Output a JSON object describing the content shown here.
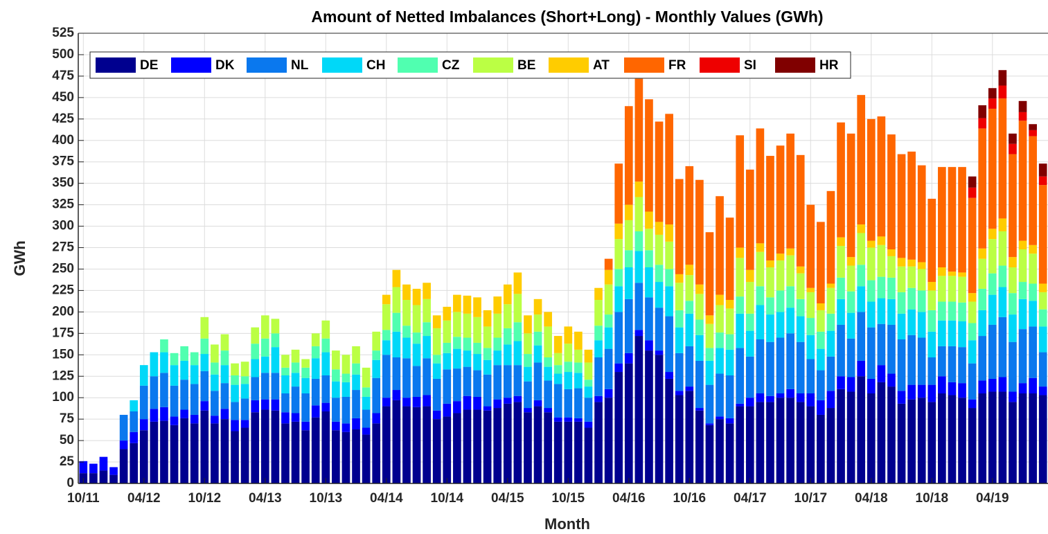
{
  "chart_data": {
    "type": "stacked_bar",
    "title": "Amount of Netted Imbalances (Short+Long) - Monthly Values  (GWh)",
    "x_label": "Month",
    "y_label": "GWh",
    "categories": [
      "10/11",
      null,
      null,
      null,
      null,
      null,
      "04/12",
      null,
      null,
      null,
      null,
      null,
      "10/12",
      null,
      null,
      null,
      null,
      null,
      "04/13",
      null,
      null,
      null,
      null,
      null,
      "10/13",
      null,
      null,
      null,
      null,
      null,
      "04/14",
      null,
      null,
      null,
      null,
      null,
      "10/14",
      null,
      null,
      null,
      null,
      null,
      "04/15",
      null,
      null,
      null,
      null,
      null,
      "10/15",
      null,
      null,
      null,
      null,
      null,
      "04/16",
      null,
      null,
      null,
      null,
      null,
      "10/16",
      null,
      null,
      null,
      null,
      null,
      "04/17",
      null,
      null,
      null,
      null,
      null,
      "10/17",
      null,
      null,
      null,
      null,
      null,
      "04/18",
      null,
      null,
      null,
      null,
      null,
      "10/18",
      null,
      null,
      null,
      null,
      null,
      "04/19",
      null,
      null,
      null,
      null,
      null
    ],
    "ylim": [
      0,
      525
    ],
    "yticks": [
      0,
      25,
      50,
      75,
      100,
      125,
      150,
      175,
      200,
      225,
      250,
      275,
      300,
      325,
      350,
      375,
      400,
      425,
      450,
      475,
      500,
      525
    ],
    "grid": true,
    "legend": "upper left",
    "series": [
      {
        "name": "DE",
        "color": "#00008f",
        "values": [
          12,
          12,
          15,
          10,
          40,
          47,
          62,
          72,
          73,
          68,
          76,
          70,
          85,
          70,
          75,
          61,
          65,
          83,
          86,
          85,
          70,
          72,
          62,
          77,
          84,
          62,
          60,
          63,
          57,
          70,
          90,
          97,
          90,
          89,
          90,
          75,
          78,
          82,
          86,
          86,
          85,
          88,
          93,
          95,
          83,
          90,
          83,
          72,
          72,
          72,
          65,
          95,
          100,
          130,
          140,
          172,
          155,
          150,
          122,
          103,
          108,
          85,
          68,
          75,
          70,
          90,
          90,
          95,
          95,
          100,
          100,
          95,
          90,
          80,
          88,
          110,
          107,
          125,
          105,
          118,
          113,
          93,
          98,
          100,
          95,
          105,
          103,
          100,
          88,
          105,
          107,
          107,
          95,
          105,
          105,
          103
        ]
      },
      {
        "name": "DK",
        "color": "#0000ff",
        "values": [
          14,
          11,
          16,
          9,
          10,
          13,
          13,
          15,
          16,
          10,
          10,
          10,
          11,
          9,
          12,
          13,
          9,
          14,
          12,
          13,
          13,
          10,
          10,
          14,
          10,
          10,
          10,
          13,
          8,
          12,
          10,
          12,
          10,
          12,
          13,
          10,
          15,
          14,
          16,
          15,
          5,
          10,
          7,
          7,
          5,
          7,
          5,
          5,
          5,
          4,
          7,
          7,
          10,
          10,
          12,
          7,
          12,
          5,
          8,
          5,
          5,
          3,
          2,
          3,
          6,
          3,
          10,
          10,
          7,
          5,
          10,
          10,
          15,
          17,
          20,
          15,
          17,
          18,
          17,
          20,
          15,
          15,
          17,
          15,
          20,
          20,
          15,
          17,
          10,
          15,
          15,
          17,
          12,
          12,
          18,
          10
        ]
      },
      {
        "name": "NL",
        "color": "#0a78ee",
        "values": [
          0,
          0,
          0,
          0,
          30,
          24,
          39,
          38,
          40,
          36,
          35,
          36,
          35,
          29,
          30,
          21,
          25,
          27,
          31,
          31,
          22,
          31,
          33,
          31,
          32,
          28,
          31,
          33,
          21,
          41,
          50,
          38,
          46,
          36,
          43,
          37,
          40,
          38,
          34,
          31,
          37,
          40,
          38,
          36,
          31,
          44,
          32,
          39,
          33,
          35,
          28,
          45,
          47,
          60,
          63,
          55,
          50,
          50,
          65,
          44,
          47,
          55,
          45,
          50,
          50,
          65,
          48,
          63,
          63,
          65,
          65,
          60,
          40,
          35,
          40,
          60,
          45,
          57,
          60,
          48,
          57,
          60,
          58,
          55,
          32,
          35,
          42,
          42,
          42,
          52,
          63,
          70,
          58,
          63,
          60,
          40
        ]
      },
      {
        "name": "CH",
        "color": "#00d8f8",
        "values": [
          0,
          0,
          0,
          0,
          0,
          13,
          24,
          28,
          24,
          24,
          22,
          22,
          20,
          19,
          21,
          20,
          17,
          21,
          19,
          30,
          21,
          16,
          18,
          24,
          27,
          19,
          17,
          18,
          15,
          21,
          17,
          30,
          24,
          26,
          26,
          18,
          19,
          23,
          19,
          19,
          17,
          17,
          24,
          28,
          17,
          20,
          16,
          12,
          20,
          18,
          13,
          20,
          25,
          30,
          37,
          37,
          35,
          30,
          35,
          30,
          38,
          30,
          28,
          30,
          30,
          40,
          30,
          40,
          32,
          30,
          30,
          30,
          28,
          25,
          30,
          30,
          30,
          30,
          30,
          30,
          30,
          30,
          30,
          30,
          30,
          30,
          30,
          30,
          27,
          30,
          35,
          35,
          32,
          35,
          30,
          30
        ]
      },
      {
        "name": "CZ",
        "color": "#50ffb0",
        "values": [
          0,
          0,
          0,
          0,
          0,
          0,
          0,
          0,
          15,
          14,
          17,
          15,
          18,
          14,
          17,
          11,
          9,
          18,
          21,
          16,
          9,
          12,
          12,
          14,
          16,
          14,
          10,
          13,
          11,
          11,
          12,
          22,
          14,
          13,
          16,
          10,
          12,
          14,
          15,
          13,
          14,
          15,
          19,
          22,
          15,
          16,
          11,
          10,
          12,
          12,
          8,
          17,
          15,
          20,
          20,
          23,
          20,
          20,
          20,
          20,
          15,
          18,
          15,
          18,
          18,
          20,
          20,
          22,
          20,
          25,
          25,
          20,
          20,
          20,
          20,
          25,
          25,
          25,
          25,
          25,
          25,
          25,
          25,
          25,
          25,
          22,
          22,
          22,
          20,
          25,
          25,
          25,
          25,
          20,
          20,
          20
        ]
      },
      {
        "name": "BE",
        "color": "#bbff44",
        "values": [
          0,
          0,
          0,
          0,
          0,
          0,
          0,
          0,
          0,
          0,
          0,
          0,
          25,
          21,
          19,
          14,
          17,
          19,
          27,
          17,
          15,
          15,
          10,
          15,
          21,
          22,
          22,
          20,
          23,
          22,
          30,
          30,
          30,
          32,
          27,
          31,
          26,
          29,
          28,
          30,
          25,
          28,
          28,
          33,
          24,
          20,
          36,
          14,
          21,
          15,
          20,
          30,
          35,
          35,
          35,
          40,
          25,
          35,
          32,
          32,
          30,
          30,
          28,
          32,
          30,
          45,
          37,
          40,
          35,
          35,
          36,
          30,
          30,
          25,
          30,
          37,
          30,
          37,
          38,
          37,
          25,
          30,
          25,
          25,
          23,
          30,
          30,
          30,
          25,
          35,
          40,
          40,
          30,
          38,
          35,
          20
        ]
      },
      {
        "name": "AT",
        "color": "#ffcc00",
        "values": [
          0,
          0,
          0,
          0,
          0,
          0,
          0,
          0,
          0,
          0,
          0,
          0,
          0,
          0,
          0,
          0,
          0,
          0,
          0,
          0,
          0,
          0,
          0,
          0,
          0,
          0,
          0,
          0,
          0,
          0,
          11,
          20,
          18,
          19,
          19,
          15,
          16,
          20,
          21,
          23,
          19,
          20,
          23,
          25,
          21,
          18,
          17,
          20,
          20,
          21,
          15,
          14,
          17,
          18,
          18,
          18,
          20,
          15,
          20,
          10,
          12,
          11,
          10,
          12,
          10,
          12,
          14,
          10,
          8,
          8,
          8,
          8,
          5,
          8,
          5,
          10,
          10,
          10,
          8,
          10,
          8,
          10,
          8,
          8,
          10,
          10,
          5,
          5,
          10,
          12,
          12,
          15,
          12,
          10,
          10,
          10
        ]
      },
      {
        "name": "FR",
        "color": "#ff6600",
        "values": [
          0,
          0,
          0,
          0,
          0,
          0,
          0,
          0,
          0,
          0,
          0,
          0,
          0,
          0,
          0,
          0,
          0,
          0,
          0,
          0,
          0,
          0,
          0,
          0,
          0,
          0,
          0,
          0,
          0,
          0,
          0,
          0,
          0,
          0,
          0,
          0,
          0,
          0,
          0,
          0,
          0,
          0,
          0,
          0,
          0,
          0,
          0,
          0,
          0,
          0,
          0,
          0,
          13,
          70,
          115,
          120,
          131,
          117,
          129,
          111,
          115,
          122,
          97,
          115,
          96,
          131,
          117,
          134,
          122,
          126,
          134,
          130,
          97,
          95,
          108,
          134,
          144,
          151,
          142,
          140,
          134,
          121,
          126,
          113,
          97,
          117,
          122,
          123,
          111,
          140,
          140,
          140,
          120,
          140,
          127,
          115
        ]
      },
      {
        "name": "SI",
        "color": "#ee0000",
        "values": [
          0,
          0,
          0,
          0,
          0,
          0,
          0,
          0,
          0,
          0,
          0,
          0,
          0,
          0,
          0,
          0,
          0,
          0,
          0,
          0,
          0,
          0,
          0,
          0,
          0,
          0,
          0,
          0,
          0,
          0,
          0,
          0,
          0,
          0,
          0,
          0,
          0,
          0,
          0,
          0,
          0,
          0,
          0,
          0,
          0,
          0,
          0,
          0,
          0,
          0,
          0,
          0,
          0,
          0,
          0,
          0,
          0,
          0,
          0,
          0,
          0,
          0,
          0,
          0,
          0,
          0,
          0,
          0,
          0,
          0,
          0,
          0,
          0,
          0,
          0,
          0,
          0,
          0,
          0,
          0,
          0,
          0,
          0,
          0,
          0,
          0,
          0,
          0,
          12,
          12,
          12,
          15,
          12,
          10,
          7,
          10
        ]
      },
      {
        "name": "HR",
        "color": "#800000",
        "values": [
          0,
          0,
          0,
          0,
          0,
          0,
          0,
          0,
          0,
          0,
          0,
          0,
          0,
          0,
          0,
          0,
          0,
          0,
          0,
          0,
          0,
          0,
          0,
          0,
          0,
          0,
          0,
          0,
          0,
          0,
          0,
          0,
          0,
          0,
          0,
          0,
          0,
          0,
          0,
          0,
          0,
          0,
          0,
          0,
          0,
          0,
          0,
          0,
          0,
          0,
          0,
          0,
          0,
          0,
          0,
          0,
          0,
          0,
          0,
          0,
          0,
          0,
          0,
          0,
          0,
          0,
          0,
          0,
          0,
          0,
          0,
          0,
          0,
          0,
          0,
          0,
          0,
          0,
          0,
          0,
          0,
          0,
          0,
          0,
          0,
          0,
          0,
          0,
          13,
          15,
          12,
          18,
          12,
          13,
          7,
          15
        ]
      }
    ]
  }
}
